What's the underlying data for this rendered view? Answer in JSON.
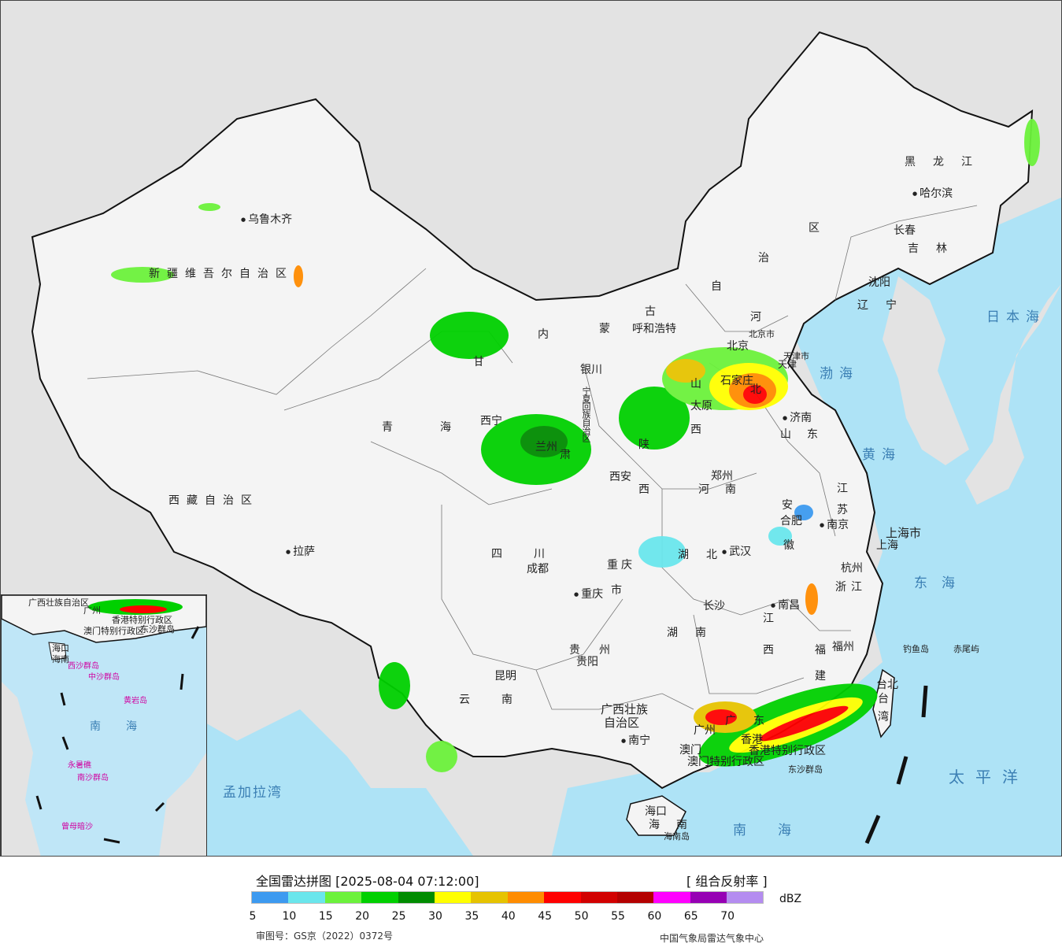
{
  "header": {
    "title": "全国雷达拼图 [2025-08-04 07:12:00]",
    "product": "[ 组合反射率 ]"
  },
  "legend": {
    "unit": "dBZ",
    "colors": [
      "#3d9af0",
      "#6ae6ec",
      "#6cf23c",
      "#00d000",
      "#008c00",
      "#ffff00",
      "#e6c300",
      "#ff8c00",
      "#ff0000",
      "#d20000",
      "#b40000",
      "#ff00ff",
      "#9600b4",
      "#b48cf0"
    ],
    "ticks": [
      "5",
      "10",
      "15",
      "20",
      "25",
      "30",
      "35",
      "40",
      "45",
      "50",
      "55",
      "60",
      "65",
      "70"
    ]
  },
  "footer": {
    "review_number": "审图号：GS京（2022）0372号",
    "agency": "中国气象局雷达气象中心"
  },
  "map": {
    "provinces": [
      "新疆维吾尔自治区",
      "西藏自治区",
      "青海",
      "甘",
      "肃",
      "内",
      "蒙",
      "古",
      "自",
      "治",
      "区",
      "黑龙江",
      "吉林",
      "辽宁",
      "河",
      "北",
      "山",
      "西",
      "陕",
      "西",
      "河南",
      "山东",
      "江",
      "苏",
      "安",
      "徽",
      "湖北",
      "湖南",
      "江",
      "西",
      "浙江",
      "福",
      "建",
      "四川",
      "重庆",
      "市",
      "贵州",
      "云南",
      "广西壮族",
      "自治区",
      "广",
      "东",
      "海",
      "南",
      "台",
      "湾",
      "上海市"
    ],
    "cities": [
      "乌鲁木齐",
      "拉萨",
      "呼和浩特",
      "银川",
      "西宁",
      "兰州",
      "西安",
      "太原",
      "石家庄",
      "北京",
      "天津",
      "济南",
      "郑州",
      "合肥",
      "南京",
      "上海",
      "杭州",
      "武汉",
      "长沙",
      "南昌",
      "福州",
      "成都",
      "重庆",
      "贵阳",
      "昆明",
      "南宁",
      "广州",
      "澳门",
      "香港",
      "海口",
      "哈尔滨",
      "长春",
      "沈阳",
      "台北"
    ],
    "seas": [
      "日本海",
      "渤海",
      "黄海",
      "东海",
      "太平洋",
      "南海",
      "孟加拉湾"
    ],
    "islands": [
      "钓鱼岛",
      "赤尾屿",
      "东沙群岛",
      "海南岛"
    ],
    "special_regions": [
      "宁夏回族自治区",
      "香港特别行政区",
      "澳门特别行政区",
      "北京市",
      "天津市"
    ],
    "inset_labels": [
      "广西壮族自治区",
      "广州",
      "香港特别行政区",
      "澳门特别行政区",
      "东沙群岛",
      "海口",
      "海南",
      "西沙群岛",
      "中沙群岛",
      "黄岩岛",
      "南",
      "海",
      "永暑礁",
      "南沙群岛",
      "曾母暗沙"
    ]
  }
}
